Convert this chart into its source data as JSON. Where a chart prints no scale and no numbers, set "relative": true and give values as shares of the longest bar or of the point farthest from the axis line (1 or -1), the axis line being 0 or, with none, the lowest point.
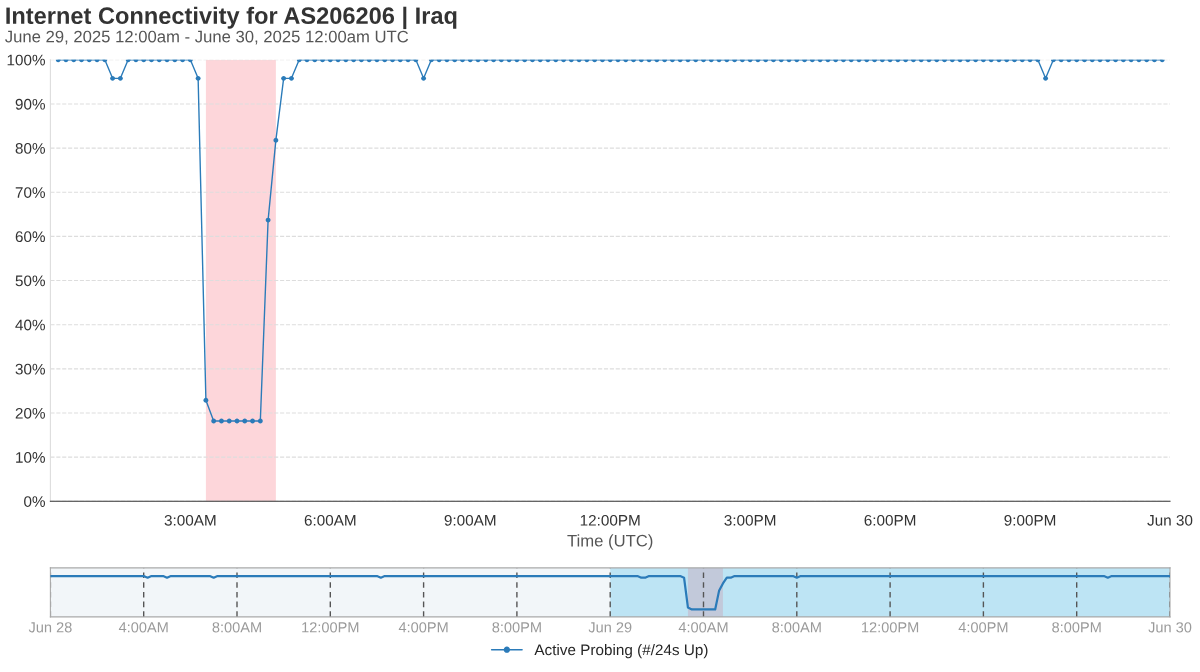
{
  "chart_data": [
    {
      "type": "line",
      "title": "Internet Connectivity for AS206206 | Iraq",
      "subtitle": "June 29, 2025 12:00am - June 30, 2025 12:00am UTC",
      "xlabel": "Time (UTC)",
      "xlim": [
        "2025-06-29T00:00",
        "2025-06-30T00:00"
      ],
      "xticks": [
        {
          "value": "2025-06-29T03:00",
          "label": "3:00AM"
        },
        {
          "value": "2025-06-29T06:00",
          "label": "6:00AM"
        },
        {
          "value": "2025-06-29T09:00",
          "label": "9:00AM"
        },
        {
          "value": "2025-06-29T12:00",
          "label": "12:00PM"
        },
        {
          "value": "2025-06-29T15:00",
          "label": "3:00PM"
        },
        {
          "value": "2025-06-29T18:00",
          "label": "6:00PM"
        },
        {
          "value": "2025-06-29T21:00",
          "label": "9:00PM"
        },
        {
          "value": "2025-06-30T00:00",
          "label": "Jun 30"
        }
      ],
      "ylim": [
        0,
        100
      ],
      "yticks": [
        {
          "value": 0,
          "label": "0%"
        },
        {
          "value": 10,
          "label": "10%"
        },
        {
          "value": 20,
          "label": "20%"
        },
        {
          "value": 30,
          "label": "30%"
        },
        {
          "value": 40,
          "label": "40%"
        },
        {
          "value": 50,
          "label": "50%"
        },
        {
          "value": 60,
          "label": "60%"
        },
        {
          "value": 70,
          "label": "70%"
        },
        {
          "value": 80,
          "label": "80%"
        },
        {
          "value": 90,
          "label": "90%"
        },
        {
          "value": 100,
          "label": "100%"
        }
      ],
      "grid": "y",
      "legend": "bottom",
      "marker": "circle",
      "line_style": "solid",
      "bands": [
        {
          "axis": "x",
          "from": "2025-06-29T03:20",
          "to": "2025-06-29T04:50",
          "color": "#fdd6da"
        }
      ],
      "series": [
        {
          "name": "Active Probing (#/24s Up)",
          "color": "#2b7bb9",
          "x": [
            "2025-06-29T00:10",
            "2025-06-29T00:20",
            "2025-06-29T00:30",
            "2025-06-29T00:40",
            "2025-06-29T00:50",
            "2025-06-29T01:00",
            "2025-06-29T01:10",
            "2025-06-29T01:20",
            "2025-06-29T01:30",
            "2025-06-29T01:40",
            "2025-06-29T01:50",
            "2025-06-29T02:00",
            "2025-06-29T02:10",
            "2025-06-29T02:20",
            "2025-06-29T02:30",
            "2025-06-29T02:40",
            "2025-06-29T02:50",
            "2025-06-29T03:00",
            "2025-06-29T03:10",
            "2025-06-29T03:20",
            "2025-06-29T03:30",
            "2025-06-29T03:40",
            "2025-06-29T03:50",
            "2025-06-29T04:00",
            "2025-06-29T04:10",
            "2025-06-29T04:20",
            "2025-06-29T04:30",
            "2025-06-29T04:40",
            "2025-06-29T04:50",
            "2025-06-29T05:00",
            "2025-06-29T05:10",
            "2025-06-29T05:20",
            "2025-06-29T05:30",
            "2025-06-29T05:40",
            "2025-06-29T05:50",
            "2025-06-29T06:00",
            "2025-06-29T06:10",
            "2025-06-29T06:20",
            "2025-06-29T06:30",
            "2025-06-29T06:40",
            "2025-06-29T06:50",
            "2025-06-29T07:00",
            "2025-06-29T07:10",
            "2025-06-29T07:20",
            "2025-06-29T07:30",
            "2025-06-29T07:40",
            "2025-06-29T07:50",
            "2025-06-29T08:00",
            "2025-06-29T08:10",
            "2025-06-29T08:20",
            "2025-06-29T08:30",
            "2025-06-29T08:40",
            "2025-06-29T08:50",
            "2025-06-29T09:00",
            "2025-06-29T09:10",
            "2025-06-29T09:20",
            "2025-06-29T09:30",
            "2025-06-29T09:40",
            "2025-06-29T09:50",
            "2025-06-29T10:00",
            "2025-06-29T10:10",
            "2025-06-29T10:20",
            "2025-06-29T10:30",
            "2025-06-29T10:40",
            "2025-06-29T10:50",
            "2025-06-29T11:00",
            "2025-06-29T11:10",
            "2025-06-29T11:20",
            "2025-06-29T11:30",
            "2025-06-29T11:40",
            "2025-06-29T11:50",
            "2025-06-29T12:00",
            "2025-06-29T12:10",
            "2025-06-29T12:20",
            "2025-06-29T12:30",
            "2025-06-29T12:40",
            "2025-06-29T12:50",
            "2025-06-29T13:00",
            "2025-06-29T13:10",
            "2025-06-29T13:20",
            "2025-06-29T13:30",
            "2025-06-29T13:40",
            "2025-06-29T13:50",
            "2025-06-29T14:00",
            "2025-06-29T14:10",
            "2025-06-29T14:20",
            "2025-06-29T14:30",
            "2025-06-29T14:40",
            "2025-06-29T14:50",
            "2025-06-29T15:00",
            "2025-06-29T15:10",
            "2025-06-29T15:20",
            "2025-06-29T15:30",
            "2025-06-29T15:40",
            "2025-06-29T15:50",
            "2025-06-29T16:00",
            "2025-06-29T16:10",
            "2025-06-29T16:20",
            "2025-06-29T16:30",
            "2025-06-29T16:40",
            "2025-06-29T16:50",
            "2025-06-29T17:00",
            "2025-06-29T17:10",
            "2025-06-29T17:20",
            "2025-06-29T17:30",
            "2025-06-29T17:40",
            "2025-06-29T17:50",
            "2025-06-29T18:00",
            "2025-06-29T18:10",
            "2025-06-29T18:20",
            "2025-06-29T18:30",
            "2025-06-29T18:40",
            "2025-06-29T18:50",
            "2025-06-29T19:00",
            "2025-06-29T19:10",
            "2025-06-29T19:20",
            "2025-06-29T19:30",
            "2025-06-29T19:40",
            "2025-06-29T19:50",
            "2025-06-29T20:00",
            "2025-06-29T20:10",
            "2025-06-29T20:20",
            "2025-06-29T20:30",
            "2025-06-29T20:40",
            "2025-06-29T20:50",
            "2025-06-29T21:00",
            "2025-06-29T21:10",
            "2025-06-29T21:20",
            "2025-06-29T21:30",
            "2025-06-29T21:40",
            "2025-06-29T21:50",
            "2025-06-29T22:00",
            "2025-06-29T22:10",
            "2025-06-29T22:20",
            "2025-06-29T22:30",
            "2025-06-29T22:40",
            "2025-06-29T22:50",
            "2025-06-29T23:00",
            "2025-06-29T23:10",
            "2025-06-29T23:20",
            "2025-06-29T23:30",
            "2025-06-29T23:40",
            "2025-06-29T23:50"
          ],
          "values": [
            100,
            100,
            100,
            100,
            100,
            100,
            100,
            95.8,
            95.8,
            100,
            100,
            100,
            100,
            100,
            100,
            100,
            100,
            100,
            95.8,
            22.9,
            18.2,
            18.2,
            18.2,
            18.2,
            18.2,
            18.2,
            18.2,
            63.7,
            81.8,
            95.8,
            95.8,
            100,
            100,
            100,
            100,
            100,
            100,
            100,
            100,
            100,
            100,
            100,
            100,
            100,
            100,
            100,
            100,
            95.8,
            100,
            100,
            100,
            100,
            100,
            100,
            100,
            100,
            100,
            100,
            100,
            100,
            100,
            100,
            100,
            100,
            100,
            100,
            100,
            100,
            100,
            100,
            100,
            100,
            100,
            100,
            100,
            100,
            100,
            100,
            100,
            100,
            100,
            100,
            100,
            100,
            100,
            100,
            100,
            100,
            100,
            100,
            100,
            100,
            100,
            100,
            100,
            100,
            100,
            100,
            100,
            100,
            100,
            100,
            100,
            100,
            100,
            100,
            100,
            100,
            100,
            100,
            100,
            100,
            100,
            100,
            100,
            100,
            100,
            100,
            100,
            100,
            100,
            100,
            100,
            100,
            100,
            100,
            100,
            95.8,
            100,
            100,
            100,
            100,
            100,
            100,
            100,
            100,
            100,
            100,
            100,
            100,
            100,
            100,
            100
          ]
        }
      ]
    },
    {
      "type": "line",
      "relative": true,
      "tick_labels": "x",
      "grid": "x",
      "xlim": [
        "2025-06-28T00:00",
        "2025-06-30T00:00"
      ],
      "xticks": [
        {
          "value": "2025-06-28T00:00",
          "label": "Jun 28"
        },
        {
          "value": "2025-06-28T04:00",
          "label": "4:00AM"
        },
        {
          "value": "2025-06-28T08:00",
          "label": "8:00AM"
        },
        {
          "value": "2025-06-28T12:00",
          "label": "12:00PM"
        },
        {
          "value": "2025-06-28T16:00",
          "label": "4:00PM"
        },
        {
          "value": "2025-06-28T20:00",
          "label": "8:00PM"
        },
        {
          "value": "2025-06-29T00:00",
          "label": "Jun 29"
        },
        {
          "value": "2025-06-29T04:00",
          "label": "4:00AM"
        },
        {
          "value": "2025-06-29T08:00",
          "label": "8:00AM"
        },
        {
          "value": "2025-06-29T12:00",
          "label": "12:00PM"
        },
        {
          "value": "2025-06-29T16:00",
          "label": "4:00PM"
        },
        {
          "value": "2025-06-29T20:00",
          "label": "8:00PM"
        },
        {
          "value": "2025-06-30T00:00",
          "label": "Jun 30"
        }
      ],
      "bands": [
        {
          "axis": "x",
          "from": "2025-06-29T00:00",
          "to": "2025-06-30T00:00",
          "color": "#bde4f4"
        },
        {
          "axis": "x",
          "from": "2025-06-29T03:20",
          "to": "2025-06-29T04:50",
          "color": "#c2c9da"
        }
      ],
      "series": [
        {
          "color": "#2b7bb9",
          "x": [
            "2025-06-28T00:00",
            "2025-06-28T04:00",
            "2025-06-28T04:10",
            "2025-06-28T04:20",
            "2025-06-28T04:50",
            "2025-06-28T05:00",
            "2025-06-28T05:10",
            "2025-06-28T06:50",
            "2025-06-28T07:00",
            "2025-06-28T07:10",
            "2025-06-28T14:00",
            "2025-06-28T14:10",
            "2025-06-28T14:20",
            "2025-06-29T01:10",
            "2025-06-29T01:20",
            "2025-06-29T01:30",
            "2025-06-29T01:40",
            "2025-06-29T03:00",
            "2025-06-29T03:10",
            "2025-06-29T03:20",
            "2025-06-29T03:30",
            "2025-06-29T04:30",
            "2025-06-29T04:40",
            "2025-06-29T04:50",
            "2025-06-29T05:00",
            "2025-06-29T05:10",
            "2025-06-29T05:20",
            "2025-06-29T07:50",
            "2025-06-29T08:00",
            "2025-06-29T08:10",
            "2025-06-29T21:10",
            "2025-06-29T21:20",
            "2025-06-29T21:30",
            "2025-06-30T00:00"
          ],
          "values": [
            1,
            1,
            0.958,
            1,
            1,
            0.958,
            1,
            1,
            0.958,
            1,
            1,
            0.958,
            1,
            1,
            0.958,
            0.958,
            1,
            1,
            0.958,
            0.229,
            0.182,
            0.182,
            0.637,
            0.818,
            0.958,
            0.958,
            1,
            1,
            0.958,
            1,
            1,
            0.958,
            1,
            1
          ]
        }
      ]
    }
  ]
}
